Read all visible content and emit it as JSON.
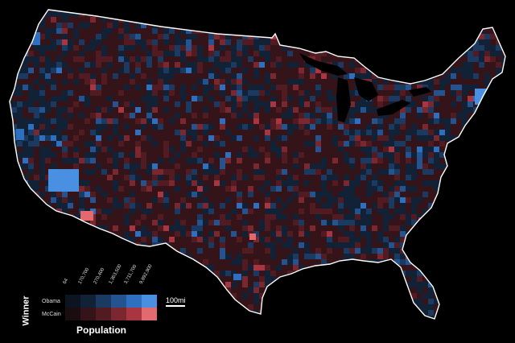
{
  "legend": {
    "row_axis_label": "Winner",
    "col_axis_label": "Population",
    "rows": [
      {
        "label": "Obama",
        "colors": [
          "#0b1420",
          "#112236",
          "#1b3a62",
          "#24538f",
          "#2f6fbf",
          "#4a90e2"
        ]
      },
      {
        "label": "McCain",
        "colors": [
          "#1a0d0f",
          "#341418",
          "#521b22",
          "#7a2730",
          "#a8353f",
          "#e26a6e"
        ]
      }
    ],
    "ticks": [
      "64",
      "170,700",
      "270,400",
      "1,363,500",
      "3,711,700",
      "9,892,900"
    ]
  },
  "scale_bar": {
    "label": "100mi"
  },
  "colors": {
    "outline": "#ffffff",
    "background": "#000000",
    "base": "#2a1216"
  }
}
